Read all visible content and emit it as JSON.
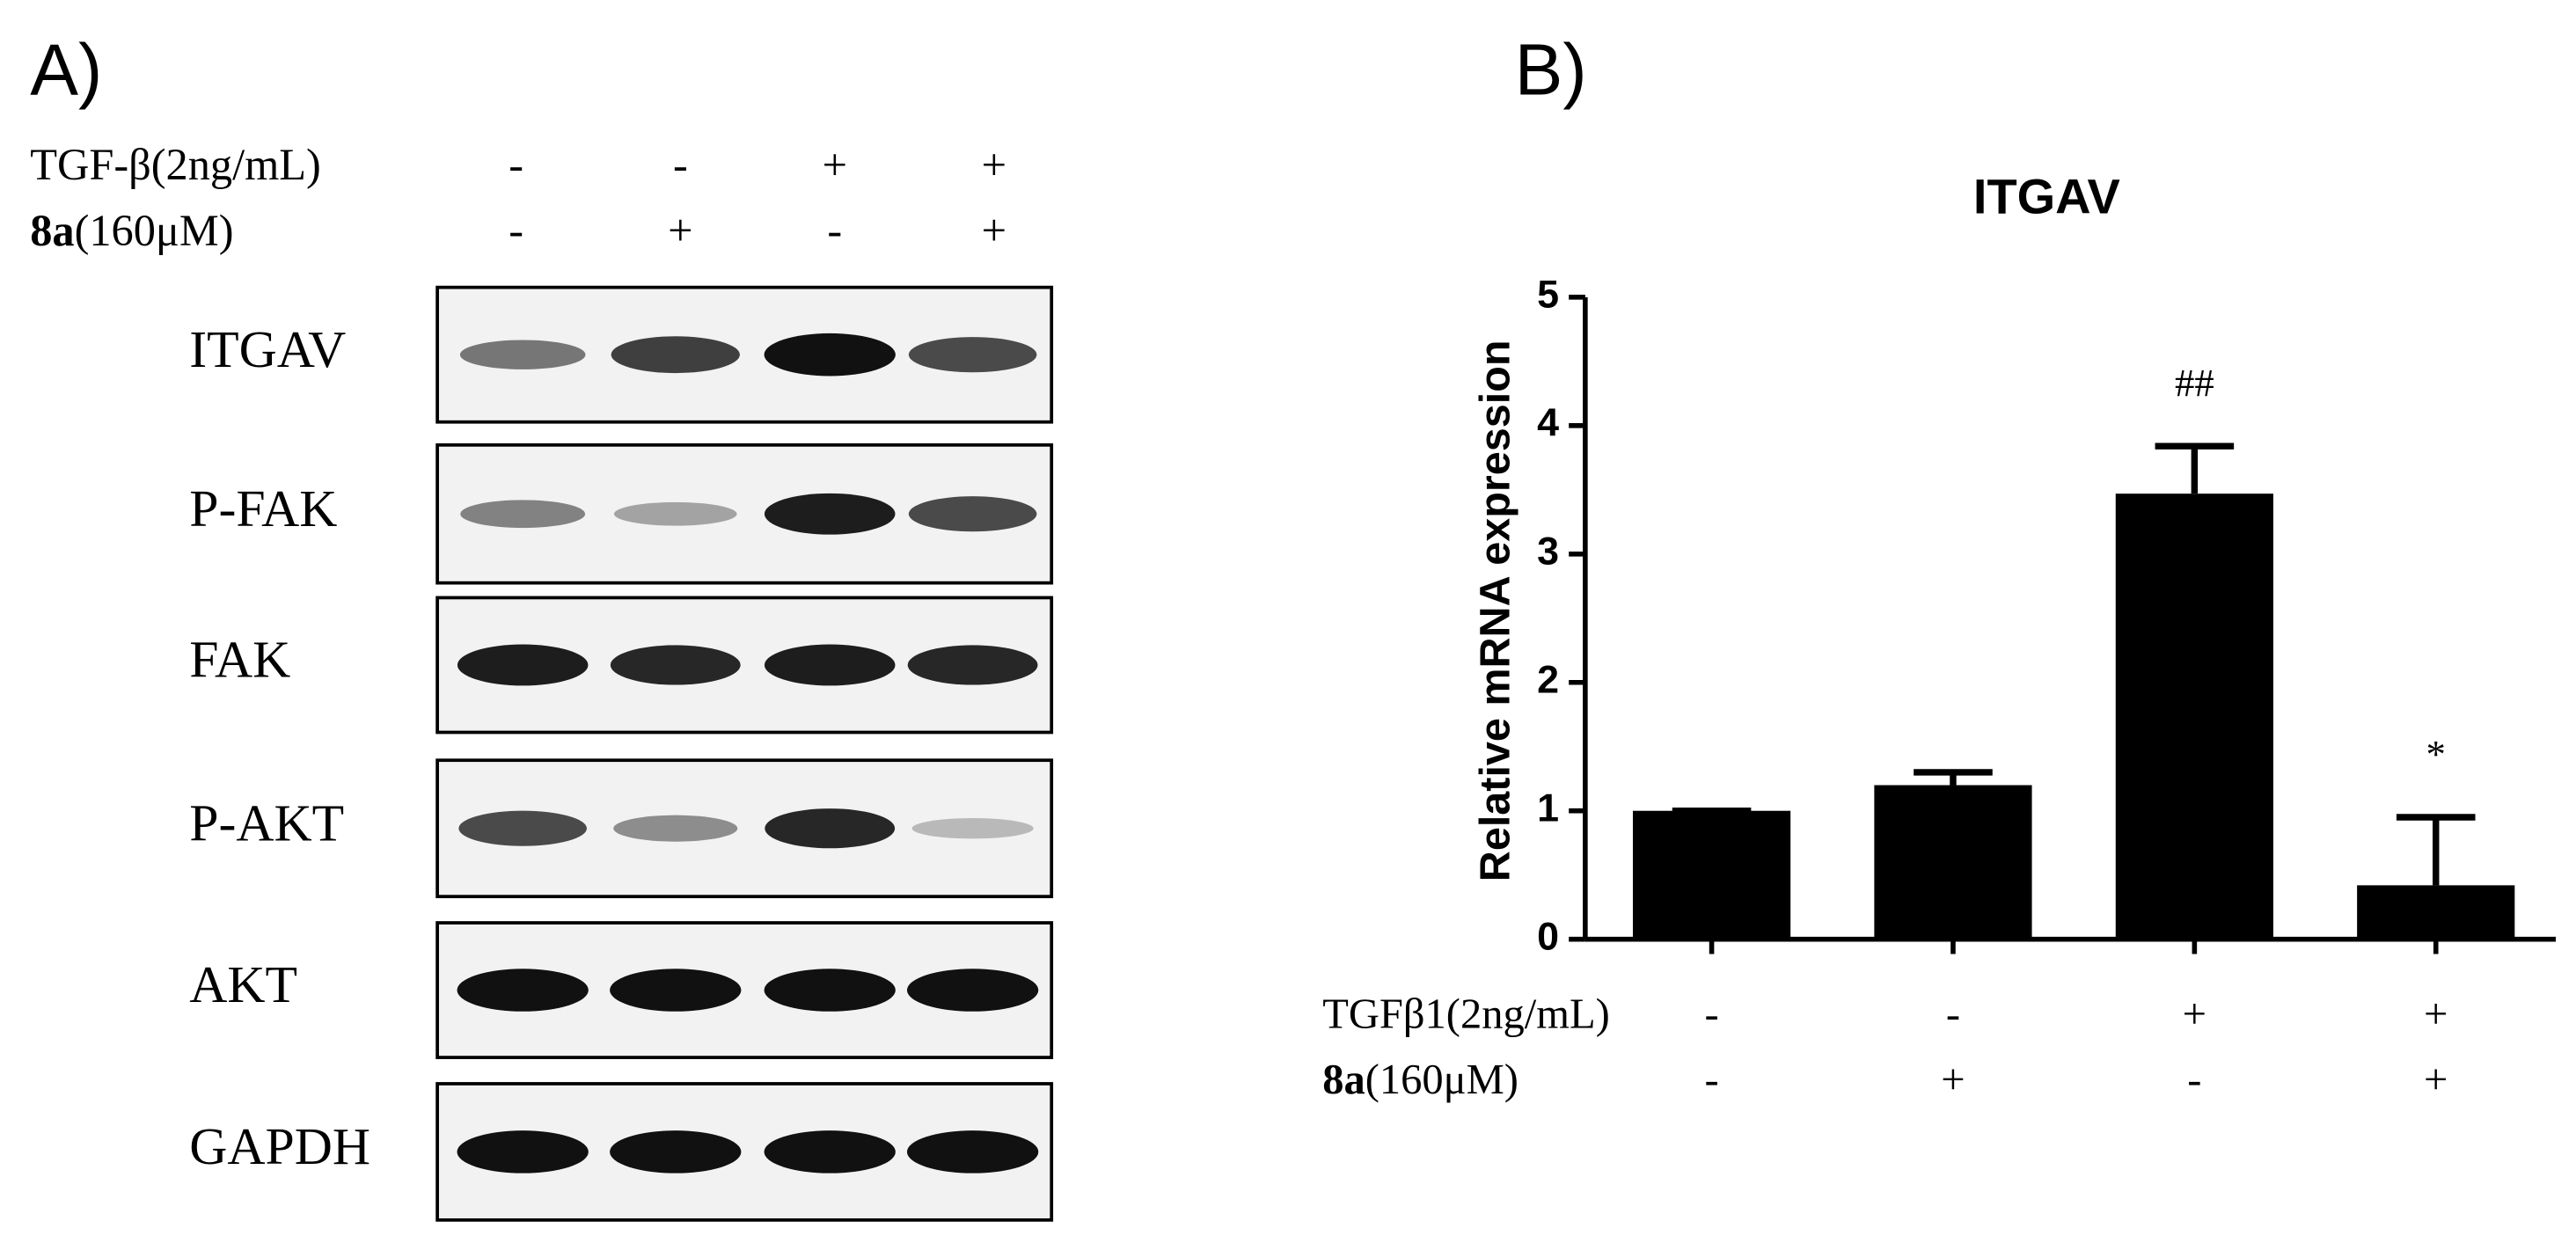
{
  "panel_a": {
    "label": "A)",
    "treatments": [
      {
        "label": "TGF-β(2ng/mL)",
        "signs": [
          "-",
          "-",
          "+",
          "+"
        ]
      },
      {
        "label_bold": "8a",
        "label": "(160μM)",
        "signs": [
          "-",
          "+",
          "-",
          "+"
        ]
      }
    ],
    "blots": [
      "ITGAV",
      "P-FAK",
      "FAK",
      "P-AKT",
      "AKT",
      "GAPDH"
    ]
  },
  "chart_data": {
    "type": "bar",
    "panel_label": "B)",
    "title": "ITGAV",
    "y_label": "Relative mRNA expression",
    "categories": [
      null,
      null,
      null,
      null
    ],
    "values": [
      1.0,
      1.2,
      3.47,
      0.42
    ],
    "errors": [
      0,
      0.1,
      0.37,
      0.53
    ],
    "bar_annotations": [
      null,
      null,
      "##",
      "*"
    ],
    "color": "#000000",
    "ylim": [
      0,
      5
    ],
    "yticks": [
      0,
      1,
      2,
      3,
      4,
      5
    ],
    "treatments": [
      {
        "label": "TGFβ1(2ng/mL)",
        "signs": [
          "-",
          "-",
          "+",
          "+"
        ]
      },
      {
        "label_bold": "8a",
        "label": "(160μM)",
        "signs": [
          "-",
          "+",
          "-",
          "+"
        ]
      }
    ]
  }
}
